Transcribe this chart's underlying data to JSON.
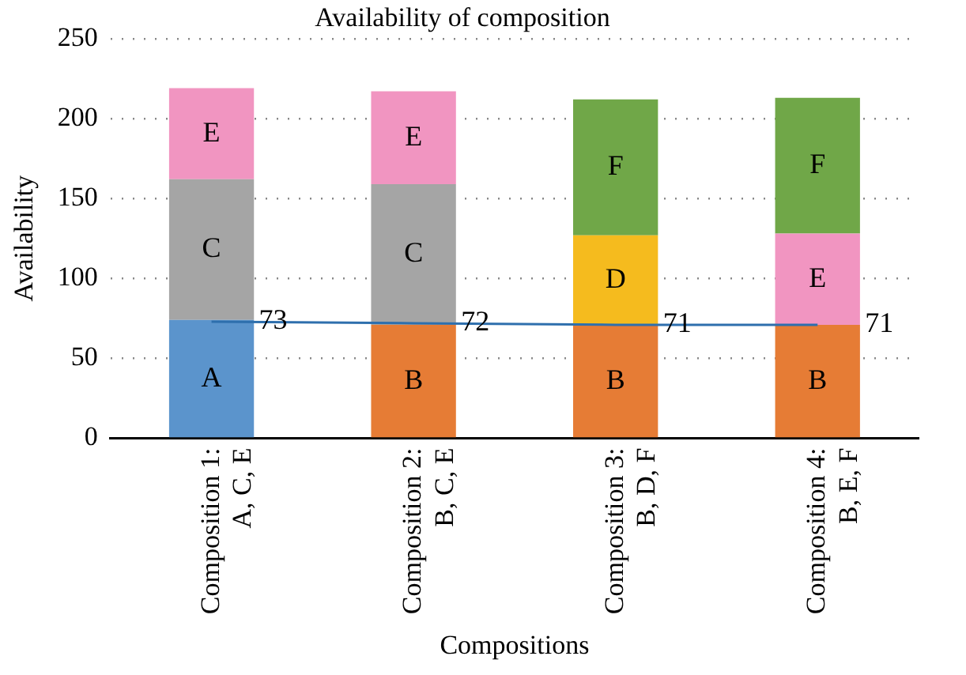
{
  "chart_data": {
    "type": "bar",
    "title": "Availability of composition",
    "xlabel": "Compositions",
    "ylabel": "Availability",
    "categories": [
      "Composition 1:\nA, C, E",
      "Composition 2:\nB, C, E",
      "Composition 3:\nB, D, F",
      "Composition 4:\nB, E, F"
    ],
    "stacked": true,
    "series": [
      {
        "name": "A",
        "color": "#5b94cc",
        "values": [
          74,
          null,
          null,
          null
        ]
      },
      {
        "name": "B",
        "color": "#e67c35",
        "values": [
          null,
          71,
          71,
          71
        ]
      },
      {
        "name": "C",
        "color": "#a5a5a5",
        "values": [
          88,
          88,
          null,
          null
        ]
      },
      {
        "name": "D",
        "color": "#f5bb1e",
        "values": [
          null,
          null,
          56,
          null
        ]
      },
      {
        "name": "E",
        "color": "#f195c1",
        "values": [
          57,
          58,
          null,
          57
        ]
      },
      {
        "name": "F",
        "color": "#70a748",
        "values": [
          null,
          null,
          85,
          85
        ]
      },
      {
        "type": "line",
        "color": "#2e6fad",
        "values": [
          73,
          72,
          71,
          71
        ],
        "value_labels": [
          "73",
          "72",
          "71",
          "71"
        ]
      }
    ],
    "ylim": [
      0,
      250
    ],
    "yticks": [
      0,
      50,
      100,
      150,
      200,
      250
    ],
    "grid": "y",
    "legend": false,
    "marker": "none"
  }
}
